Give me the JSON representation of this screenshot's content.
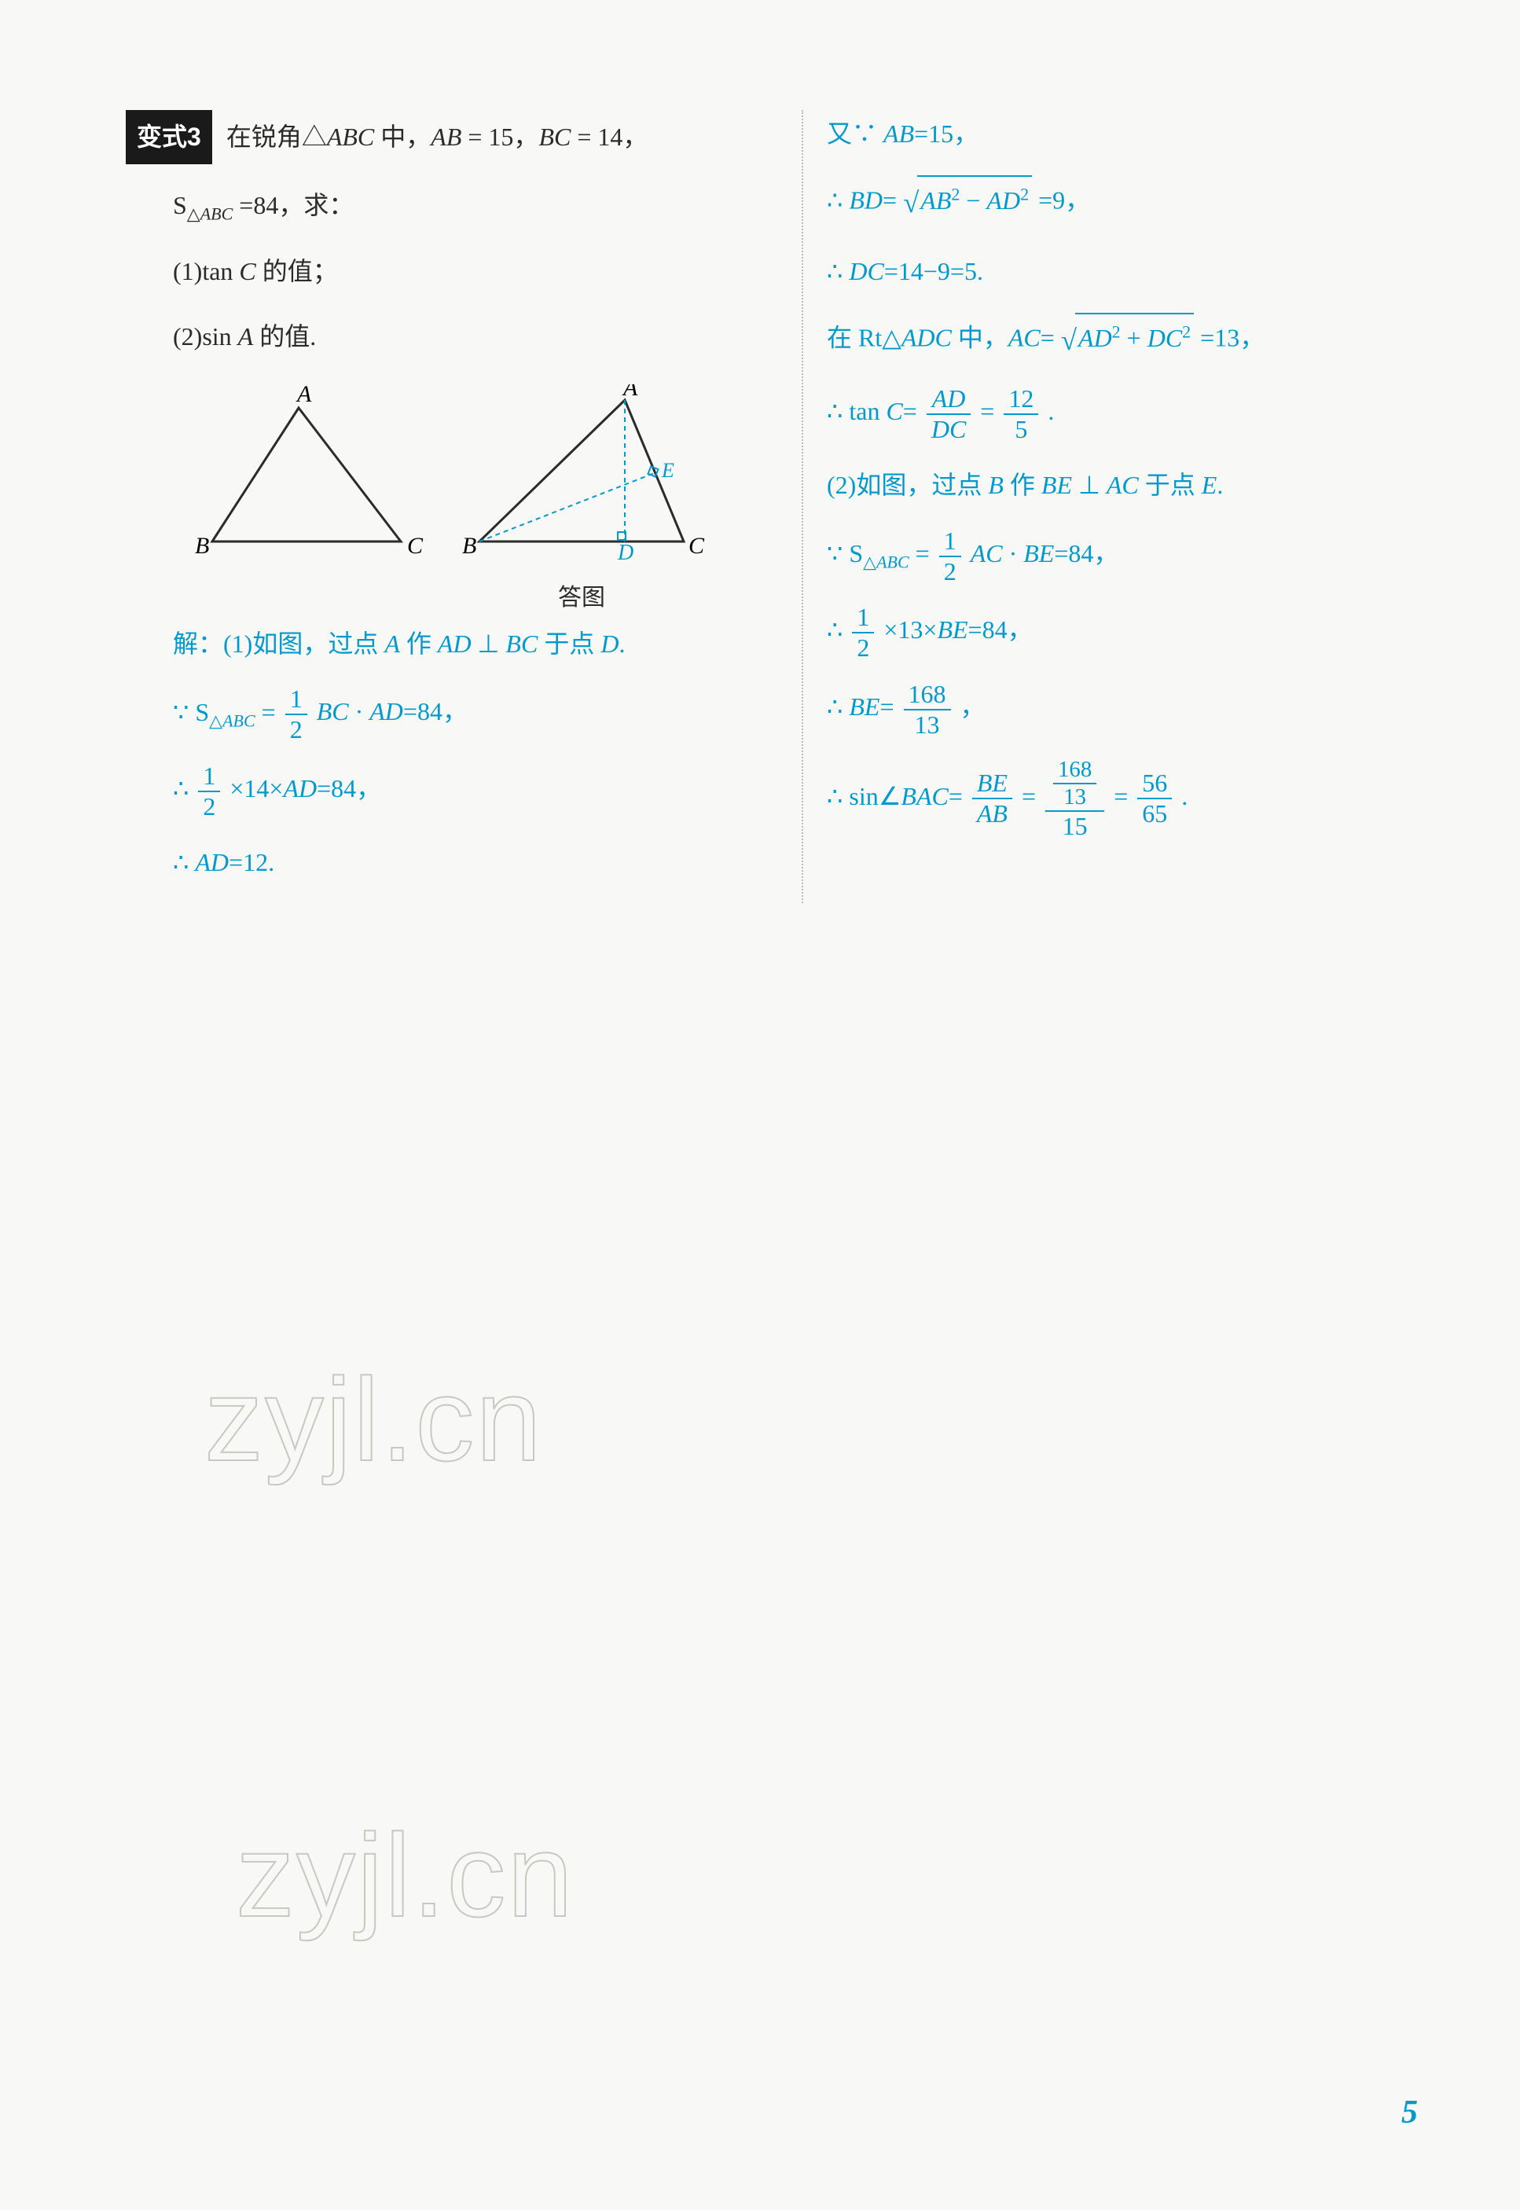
{
  "problem": {
    "badge": "变式3",
    "stem": "在锐角△<span class='ital'>ABC</span> 中，<span class='ital'>AB</span> = 15，<span class='ital'>BC</span> = 14，",
    "stem2": "S<span class='sub'>△<span class='ital'>ABC</span></span> =84，求：",
    "q1": "(1)tan <span class='ital'>C</span> 的值；",
    "q2": "(2)sin <span class='ital'>A</span> 的值."
  },
  "figs": {
    "caption": "答图",
    "labelA": "A",
    "labelB": "B",
    "labelC": "C",
    "labelD": "D",
    "labelE": "E",
    "stroke_black": "#2b2b2b",
    "stroke_blue": "#0099cc"
  },
  "solution_left": {
    "l1": "解：(1)如图，过点 <span class='ital'>A</span> 作 <span class='ital'>AD</span> ⊥ <span class='ital'>BC</span> 于点 <span class='ital'>D</span>.",
    "l2_prefix": "∵ S<span class='sub'>△<span class='ital'>ABC</span></span> =",
    "l2_num": "1",
    "l2_den": "2",
    "l2_suffix": "<span class='ital'>BC</span> · <span class='ital'>AD</span>=84，",
    "l3_pre": "∴ ",
    "l3_num": "1",
    "l3_den": "2",
    "l3_suf": "×14×<span class='ital'>AD</span>=84，",
    "l4": "∴ <span class='ital'>AD</span>=12."
  },
  "solution_right": {
    "r1": "又∵ <span class='ital'>AB</span>=15，",
    "r2_pre": "∴ <span class='ital'>BD</span>=",
    "r2_rad": "<span class='ital'>AB</span><span class='sup'>2</span> − <span class='ital'>AD</span><span class='sup'>2</span>",
    "r2_suf": "=9，",
    "r3": "∴ <span class='ital'>DC</span>=14−9=5.",
    "r4_pre": "在 Rt△<span class='ital'>ADC</span> 中，<span class='ital'>AC</span>=",
    "r4_rad": "<span class='ital'>AD</span><span class='sup'>2</span> + <span class='ital'>DC</span><span class='sup'>2</span>",
    "r4_suf": "=13，",
    "r5_pre": "∴ tan <span class='ital'>C</span>=",
    "r5_num1": "<span class='ital'>AD</span>",
    "r5_den1": "<span class='ital'>DC</span>",
    "r5_mid": "=",
    "r5_num2": "12",
    "r5_den2": "5",
    "r5_suf": ".",
    "r6": "(2)如图，过点 <span class='ital'>B</span> 作 <span class='ital'>BE</span> ⊥ <span class='ital'>AC</span> 于点 <span class='ital'>E</span>.",
    "r7_pre": "∵ S<span class='sub'>△<span class='ital'>ABC</span></span> =",
    "r7_num": "1",
    "r7_den": "2",
    "r7_suf": "<span class='ital'>AC</span> · <span class='ital'>BE</span>=84，",
    "r8_pre": "∴ ",
    "r8_num": "1",
    "r8_den": "2",
    "r8_suf": "×13×<span class='ital'>BE</span>=84，",
    "r9_pre": "∴ <span class='ital'>BE</span>=",
    "r9_num": "168",
    "r9_den": "13",
    "r9_suf": "，",
    "r10_pre": "∴ sin∠<span class='ital'>BAC</span>=",
    "r10_num1": "<span class='ital'>BE</span>",
    "r10_den1": "<span class='ital'>AB</span>",
    "r10_mid1": "=",
    "r10_inner_num_num": "168",
    "r10_inner_num_den": "13",
    "r10_inner_den": "15",
    "r10_mid2": "=",
    "r10_num3": "56",
    "r10_den3": "65",
    "r10_suf": "."
  },
  "watermark": "zyjl.cn",
  "page_number": "5"
}
